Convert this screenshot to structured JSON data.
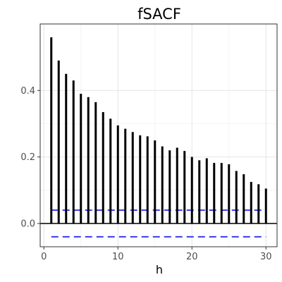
{
  "chart_data": {
    "type": "bar",
    "title": "fSACF",
    "xlabel": "h",
    "ylabel": "",
    "x": [
      1,
      2,
      3,
      4,
      5,
      6,
      7,
      8,
      9,
      10,
      11,
      12,
      13,
      14,
      15,
      16,
      17,
      18,
      19,
      20,
      21,
      22,
      23,
      24,
      25,
      26,
      27,
      28,
      29,
      30
    ],
    "values": [
      0.56,
      0.49,
      0.45,
      0.43,
      0.39,
      0.38,
      0.365,
      0.335,
      0.315,
      0.295,
      0.285,
      0.275,
      0.265,
      0.262,
      0.25,
      0.232,
      0.22,
      0.228,
      0.218,
      0.2,
      0.19,
      0.196,
      0.182,
      0.182,
      0.178,
      0.158,
      0.148,
      0.125,
      0.118,
      0.105
    ],
    "xlim": [
      -0.5,
      31.5
    ],
    "ylim": [
      -0.07,
      0.6
    ],
    "xticks": [
      0,
      10,
      20,
      30
    ],
    "xtick_labels": [
      "0",
      "10",
      "20",
      "30"
    ],
    "yticks": [
      0.0,
      0.2,
      0.4
    ],
    "ytick_labels": [
      "0.0",
      "0.2",
      "0.4"
    ],
    "confidence_band": {
      "upper": 0.04,
      "lower": -0.04,
      "color": "#3a3aed",
      "style": "dashed"
    },
    "reference_line": 0,
    "grid": true,
    "theme": "bw"
  }
}
